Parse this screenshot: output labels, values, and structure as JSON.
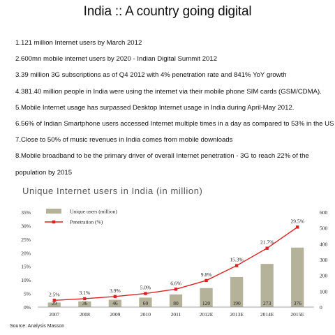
{
  "title": "India :: A country going digital",
  "points": [
    "1.121 million Internet users by March 2012",
    "2.600mn mobile internet users by 2020 - Indian Digital Summit 2012",
    "3.39 million 3G subscriptions as of Q4 2012 with 4% penetration rate and 841% YoY growth",
    "4.381.40 million people in India were using the internet via their mobile phone SIM cards (GSM/CDMA).",
    "5.Mobile Internet usage has surpassed Desktop Internet usage in India during April-May 2012.",
    "6.56% of Indian Smartphone users accessed Internet multiple times in a day as compared to 53% in the US",
    "7.Close to 50% of music revenues in India comes from mobile downloads",
    "8.Mobile broadband to be the primary driver of overall Internet penetration - 3G to reach  22% of the",
    "population by 2015"
  ],
  "source": "Source: Analysis Masson",
  "chart_data": {
    "type": "bar",
    "title": "Unique Internet users in India (in million)",
    "categories": [
      "2007",
      "2008",
      "2009",
      "2010",
      "2011",
      "2012E",
      "2013E",
      "2014E",
      "2015E"
    ],
    "series": [
      {
        "name": "Unique users (million)",
        "type": "bar",
        "axis": "right",
        "color": "#b5b29a",
        "values": [
          29,
          36,
          46,
          60,
          80,
          120,
          190,
          273,
          376
        ]
      },
      {
        "name": "Penetration (%)",
        "type": "line",
        "axis": "left",
        "color": "#dd2222",
        "values": [
          2.5,
          3.1,
          3.9,
          5.0,
          6.6,
          9.8,
          15.3,
          21.7,
          29.5
        ],
        "labels": [
          "2.5%",
          "3.1%",
          "3.9%",
          "5.0%",
          "6.6%",
          "9.8%",
          "15.3%",
          "21.7%",
          "29.5%"
        ]
      }
    ],
    "y_left": {
      "ylim": [
        0,
        35
      ],
      "ticks": [
        "0%",
        "5%",
        "10%",
        "15%",
        "20%",
        "25%",
        "30%",
        "35%"
      ]
    },
    "y_right": {
      "ylim": [
        0,
        600
      ],
      "ticks": [
        "0",
        "100",
        "200",
        "300",
        "400",
        "500",
        "600"
      ]
    },
    "legend": "top-left",
    "grid": false
  }
}
